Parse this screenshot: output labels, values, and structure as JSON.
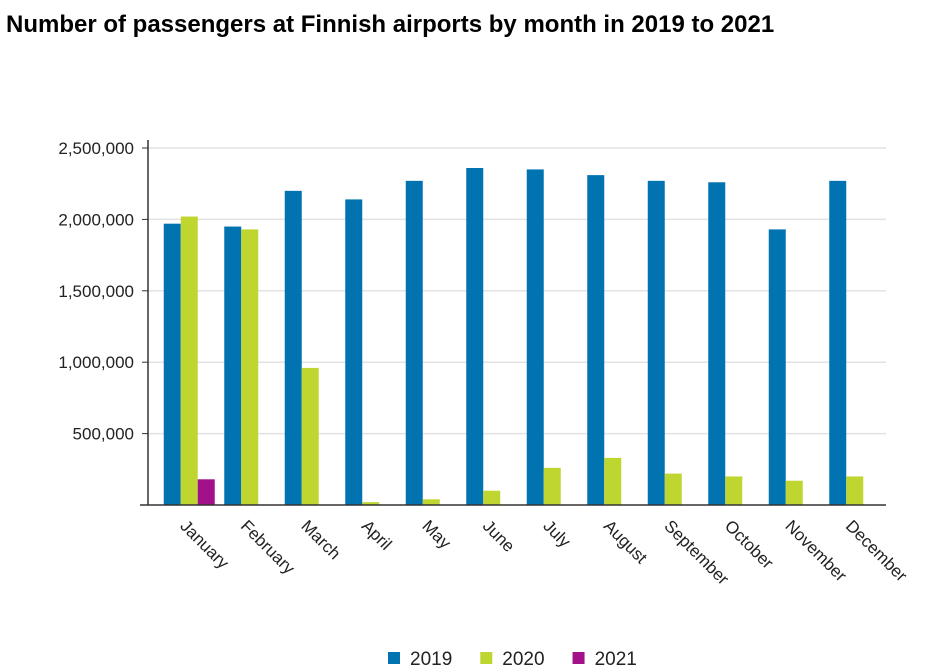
{
  "chart_data": {
    "type": "bar",
    "title": "Number of passengers at Finnish airports by month in 2019 to 2021",
    "categories": [
      "January",
      "February",
      "March",
      "April",
      "May",
      "June",
      "July",
      "August",
      "September",
      "October",
      "November",
      "December"
    ],
    "series": [
      {
        "name": "2019",
        "color": "#0073b0",
        "values": [
          1970000,
          1950000,
          2200000,
          2140000,
          2270000,
          2360000,
          2350000,
          2310000,
          2270000,
          2260000,
          1930000,
          2270000
        ]
      },
      {
        "name": "2020",
        "color": "#bfd630",
        "values": [
          2020000,
          1930000,
          960000,
          20000,
          40000,
          100000,
          260000,
          330000,
          220000,
          200000,
          170000,
          200000
        ]
      },
      {
        "name": "2021",
        "color": "#a3118a",
        "values": [
          180000,
          null,
          null,
          null,
          null,
          null,
          null,
          null,
          null,
          null,
          null,
          null
        ]
      }
    ],
    "ylim": [
      0,
      2500000
    ],
    "yticks": [
      {
        "value": 500000,
        "label": "500,000"
      },
      {
        "value": 1000000,
        "label": "1,000,000"
      },
      {
        "value": 1500000,
        "label": "1,500,000"
      },
      {
        "value": 2000000,
        "label": "2,000,000"
      },
      {
        "value": 2500000,
        "label": "2,500,000"
      }
    ],
    "grid": true
  }
}
